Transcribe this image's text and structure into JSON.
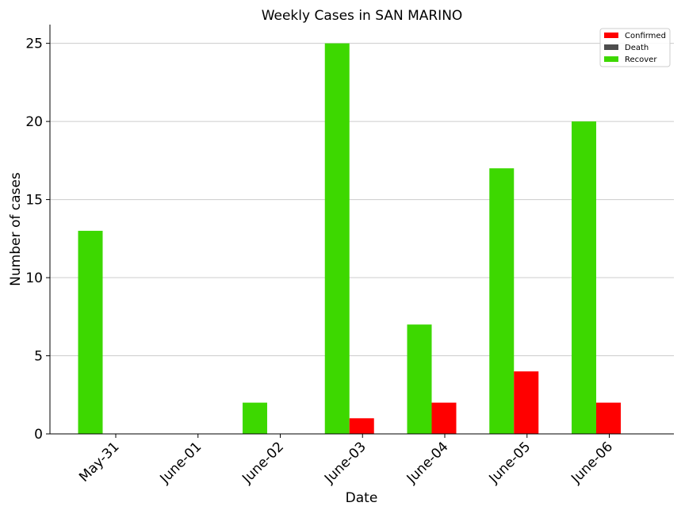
{
  "chart_data": {
    "type": "bar",
    "title": "Weekly Cases in SAN MARINO",
    "xlabel": "Date",
    "ylabel": "Number of cases",
    "categories": [
      "May-31",
      "June-01",
      "June-02",
      "June-03",
      "June-04",
      "June-05",
      "June-06"
    ],
    "ylim": [
      0,
      26.2
    ],
    "yticks": [
      0,
      5,
      10,
      15,
      20,
      25
    ],
    "grid": "horizontal",
    "legend_position": "top-right",
    "series": [
      {
        "name": "Confirmed",
        "color": "#ff0000",
        "values": [
          0,
          0,
          0,
          1,
          2,
          4,
          2
        ]
      },
      {
        "name": "Death",
        "color": "#4d4d4d",
        "values": [
          0,
          0,
          0,
          0,
          0,
          0,
          0
        ]
      },
      {
        "name": "Recover",
        "color": "#3dd800",
        "values": [
          13,
          0,
          2,
          25,
          7,
          17,
          20
        ]
      }
    ]
  }
}
